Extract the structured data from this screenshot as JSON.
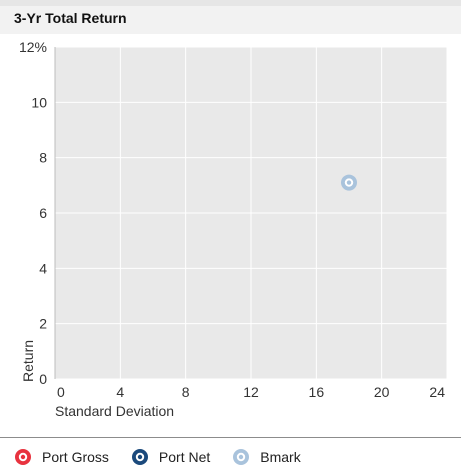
{
  "chart_data": {
    "type": "scatter",
    "title": "3-Yr Total Return",
    "xlabel": "Standard Deviation",
    "ylabel": "Return",
    "xlim": [
      0,
      24
    ],
    "ylim": [
      0,
      12
    ],
    "x_ticks": [
      "0",
      "4",
      "8",
      "12",
      "16",
      "20",
      "24"
    ],
    "y_ticks": [
      "0",
      "2",
      "4",
      "6",
      "8",
      "10",
      "12%"
    ],
    "grid": true,
    "legend_position": "bottom",
    "series": [
      {
        "name": "Port Gross",
        "color": "#e8333f",
        "points": []
      },
      {
        "name": "Port Net",
        "color": "#1b4a7c",
        "points": []
      },
      {
        "name": "Bmark",
        "color": "#a9c3dc",
        "points": [
          {
            "x": 18,
            "y": 7.1
          }
        ]
      }
    ]
  }
}
